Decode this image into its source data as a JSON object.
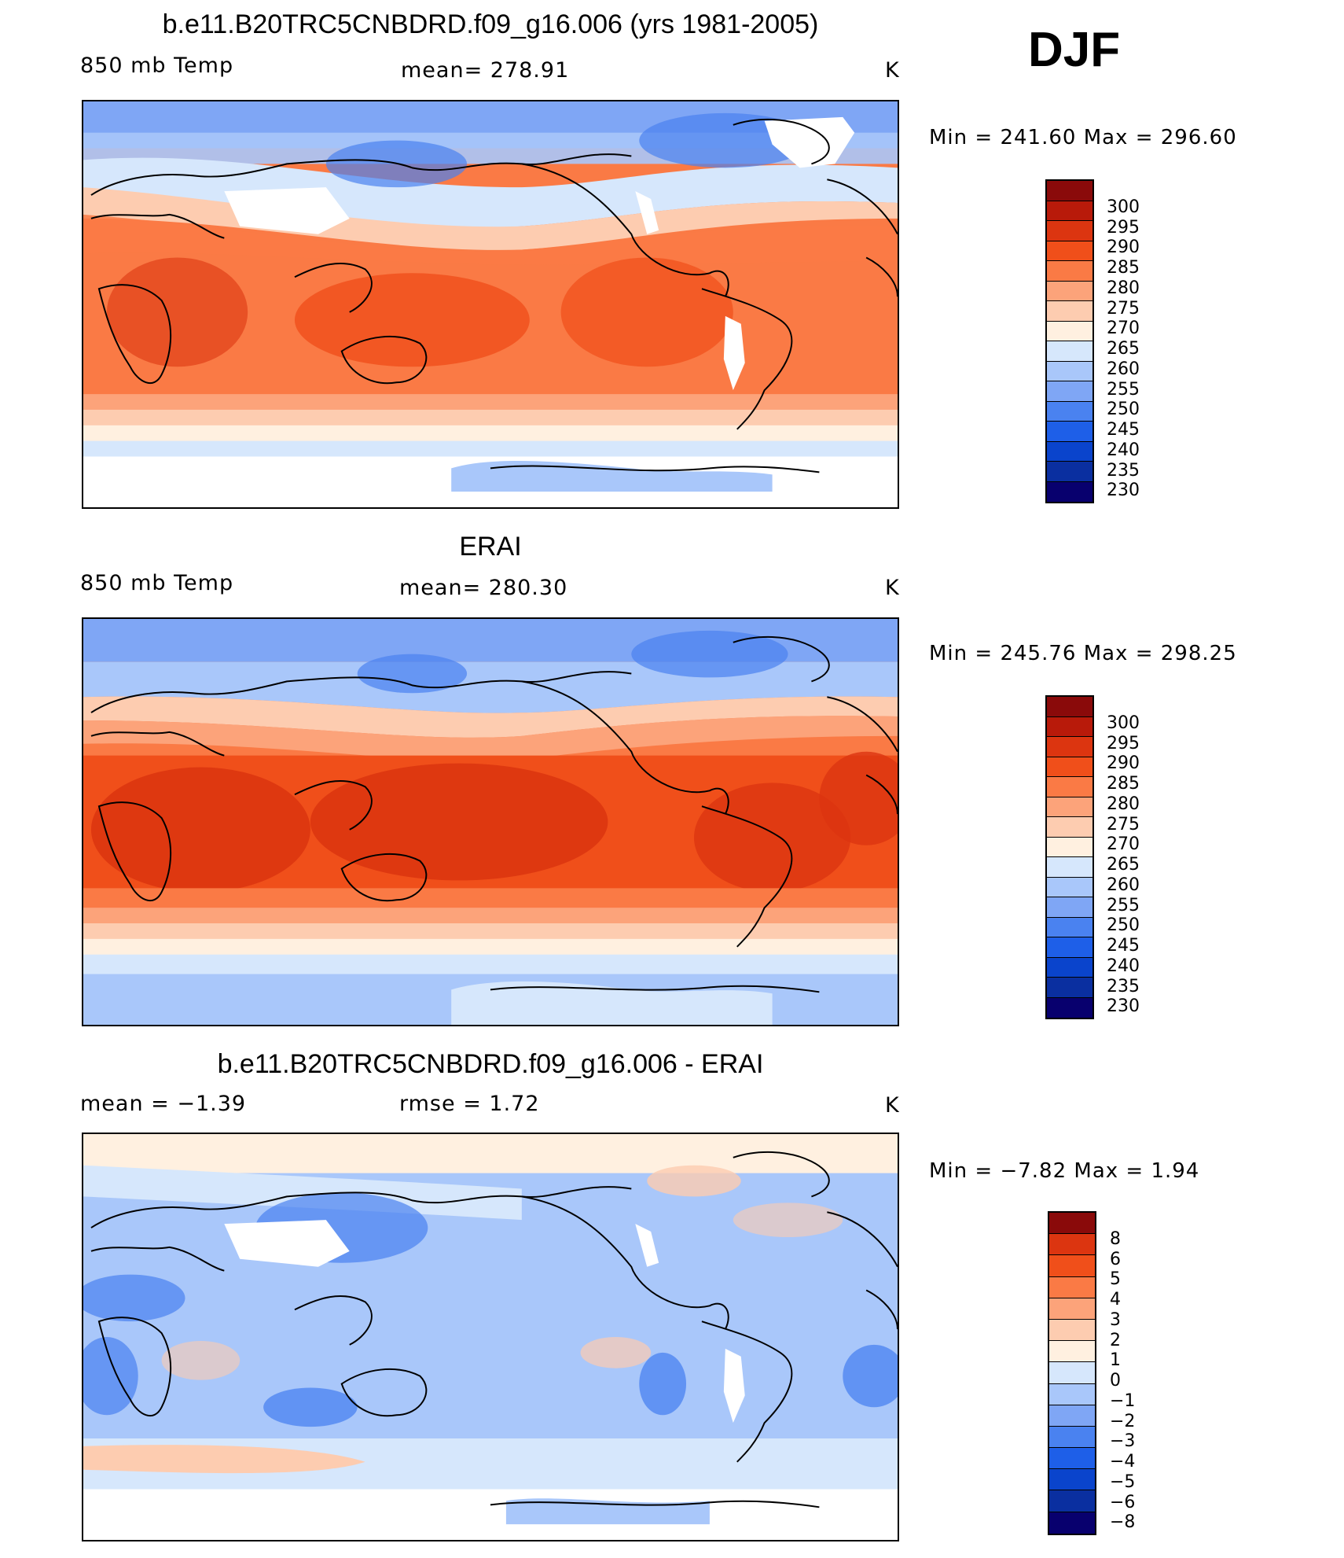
{
  "season": "DJF",
  "colors": {
    "temp": [
      "#08006e",
      "#0a2fa0",
      "#0a44cc",
      "#1e5fe8",
      "#4a82f0",
      "#7fa6f5",
      "#a9c7fa",
      "#d6e7fc",
      "#fff0e0",
      "#fdccb0",
      "#fca37a",
      "#fa7a45",
      "#f04f1a",
      "#dc3510",
      "#b81a0a",
      "#8a0a0a"
    ],
    "diff": [
      "#08006e",
      "#0a2fa0",
      "#0a44cc",
      "#1e5fe8",
      "#4a82f0",
      "#7fa6f5",
      "#a9c7fa",
      "#d6e7fc",
      "#fff0e0",
      "#fdccb0",
      "#fca37a",
      "#fa7a45",
      "#f04f1a",
      "#dc3510",
      "#8a0a0a"
    ]
  },
  "panels": [
    {
      "title": "b.e11.B20TRC5CNBDRD.f09_g16.006 (yrs 1981-2005)",
      "left_label": "850 mb Temp",
      "center_label": "mean=  278.91",
      "unit": "K",
      "minmax": "Min  =  241.60  Max  =  296.60",
      "colorbar_ticks": [
        "300",
        "295",
        "290",
        "285",
        "280",
        "275",
        "270",
        "265",
        "260",
        "255",
        "250",
        "245",
        "240",
        "235",
        "230"
      ]
    },
    {
      "title": "ERAI",
      "left_label": "850 mb Temp",
      "center_label": "mean=  280.30",
      "unit": "K",
      "minmax": "Min  =  245.76  Max  =  298.25",
      "colorbar_ticks": [
        "300",
        "295",
        "290",
        "285",
        "280",
        "275",
        "270",
        "265",
        "260",
        "255",
        "250",
        "245",
        "240",
        "235",
        "230"
      ]
    },
    {
      "title": "b.e11.B20TRC5CNBDRD.f09_g16.006 - ERAI",
      "left_label": "mean  =    −1.39",
      "center_label": "rmse  =     1.72",
      "unit": "K",
      "minmax": "Min  =    −7.82  Max  =     1.94",
      "colorbar_ticks": [
        "8",
        "6",
        "5",
        "4",
        "3",
        "2",
        "1",
        "0",
        "−1",
        "−2",
        "−3",
        "−4",
        "−5",
        "−6",
        "−8"
      ]
    }
  ]
}
